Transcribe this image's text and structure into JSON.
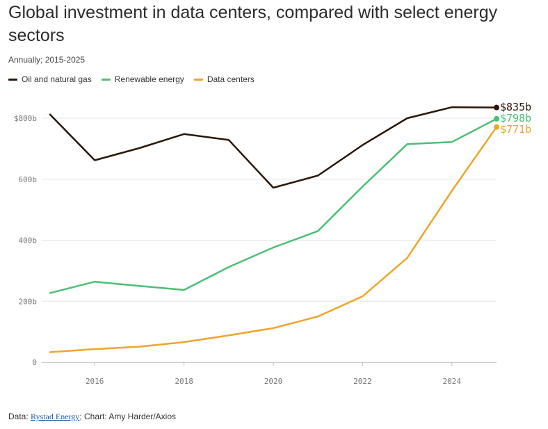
{
  "header": {
    "title": "Global investment in data centers, compared with select energy sectors",
    "subtitle": "Annually; 2015-2025"
  },
  "footer": {
    "prefix": "Data: ",
    "source_link": "Rystad Energy",
    "suffix": "; Chart: Amy Harder/Axios"
  },
  "chart_data": {
    "type": "line",
    "title": "Global investment in data centers, compared with select energy sectors",
    "subtitle": "Annually; 2015-2025",
    "xlabel": "",
    "ylabel": "",
    "x": [
      2015,
      2016,
      2017,
      2018,
      2019,
      2020,
      2021,
      2022,
      2023,
      2024,
      2025
    ],
    "xlim": [
      2015,
      2025
    ],
    "ylim": [
      0,
      835
    ],
    "x_ticks": [
      2016,
      2018,
      2020,
      2022,
      2024
    ],
    "x_tick_labels": [
      "2016",
      "2018",
      "2020",
      "2022",
      "2024"
    ],
    "y_ticks": [
      0,
      200,
      400,
      600,
      800
    ],
    "y_tick_labels": [
      "0",
      "200b",
      "400b",
      "600b",
      "$800b"
    ],
    "grid": true,
    "legend_position": "top-left",
    "series": [
      {
        "name": "Oil and natural gas",
        "color": "#2b1608",
        "values": [
          812,
          662,
          702,
          748,
          729,
          572,
          612,
          712,
          800,
          836,
          835
        ],
        "end_label": "$835b"
      },
      {
        "name": "Renewable energy",
        "color": "#4bbf73",
        "values": [
          227,
          264,
          250,
          237,
          312,
          376,
          430,
          576,
          715,
          722,
          798
        ],
        "end_label": "$798b"
      },
      {
        "name": "Data centers",
        "color": "#eea428",
        "values": [
          33,
          43,
          51,
          66,
          88,
          112,
          150,
          216,
          342,
          562,
          771
        ],
        "end_label": "$771b"
      }
    ]
  }
}
